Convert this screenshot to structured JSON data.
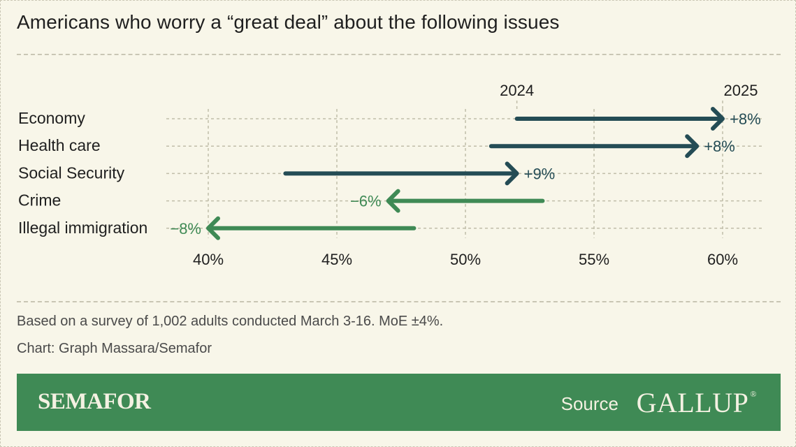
{
  "title": "Americans who worry a “great deal” about the following issues",
  "chart_data": {
    "type": "arrow-dumbbell",
    "title": "Americans who worry a “great deal” about the following issues",
    "xlim": [
      40,
      60
    ],
    "xticks": [
      "40%",
      "45%",
      "50%",
      "55%",
      "60%"
    ],
    "tick_values": [
      40,
      45,
      50,
      55,
      60
    ],
    "start_label": "2024",
    "end_label": "2025",
    "categories": [
      "Economy",
      "Health care",
      "Social Security",
      "Crime",
      "Illegal immigration"
    ],
    "series": [
      {
        "name": "2024",
        "values": [
          52,
          51,
          43,
          53,
          48
        ]
      },
      {
        "name": "2025",
        "values": [
          60,
          59,
          52,
          47,
          40
        ]
      }
    ],
    "change_labels": [
      "+8%",
      "+8%",
      "+9%",
      "−6%",
      "−8%"
    ],
    "colors": {
      "increase": "#244c55",
      "decrease": "#3f8a55"
    }
  },
  "notes": {
    "survey": "Based on a survey of 1,002 adults conducted March 3-16. MoE ±4%.",
    "credit": "Chart: Graph Massara/Semafor"
  },
  "footer": {
    "brand": "SEMAFOR",
    "source_label": "Source",
    "source_name": "GALLUP",
    "registered": "®"
  }
}
